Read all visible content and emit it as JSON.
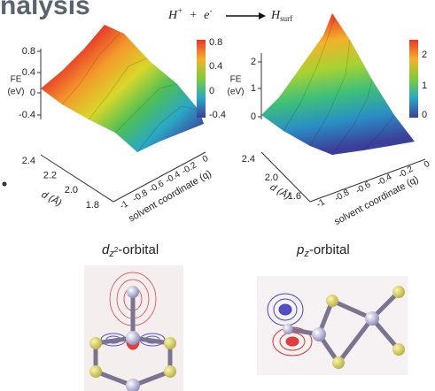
{
  "title_fragment": "nalysis",
  "equation": {
    "reactant": "H",
    "reactant_charge": "+",
    "plus": "+",
    "electron": "e",
    "electron_charge": "-",
    "product": "H",
    "product_sub": "surf"
  },
  "left_plot": {
    "z_label_1": "FE",
    "z_label_2": "(eV)",
    "z_ticks": [
      "0.8",
      "0.4",
      "0",
      "-0.4"
    ],
    "colorbar_ticks": [
      "0.8",
      "0.4",
      "0",
      "-0.4"
    ],
    "d_ticks": [
      "2.4",
      "2.2",
      "2.0",
      "1.8"
    ],
    "d_label": "d (Å)",
    "q_ticks": [
      "-1",
      "-0.8",
      "-0.6",
      "-0.4",
      "-0.2",
      "0"
    ],
    "q_label": "solvent coordinate (q)"
  },
  "right_plot": {
    "z_label_1": "FE",
    "z_label_2": "(eV)",
    "z_ticks": [
      "2",
      "1",
      "0"
    ],
    "colorbar_ticks": [
      "2",
      "1",
      "0"
    ],
    "d_ticks": [
      "2.4",
      "2.0",
      "1.6"
    ],
    "d_label": "d (Å)",
    "q_ticks": [
      "-1",
      "-0.8",
      "-0.6",
      "-0.4",
      "-0.2",
      "0"
    ],
    "q_label": "solvent coordinate (q)"
  },
  "orbitals": [
    {
      "label": "d",
      "label_sub": "z",
      "label_sub_sup": "2",
      "label_suffix": "-orbital"
    },
    {
      "label": "p",
      "label_sub": "z",
      "label_suffix": "-orbital"
    }
  ]
}
